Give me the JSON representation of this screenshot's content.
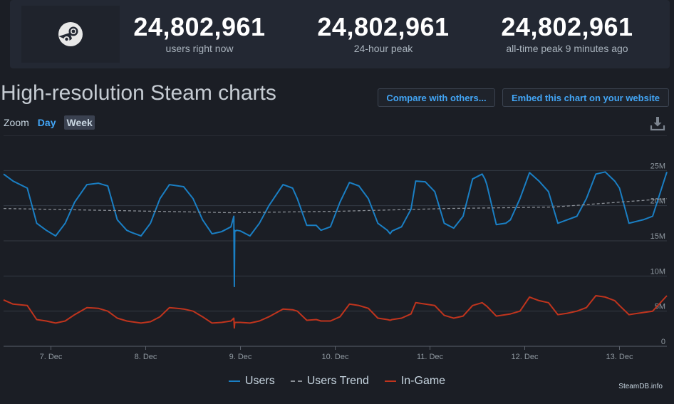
{
  "stats": [
    {
      "value": "24,802,961",
      "label": "users right now"
    },
    {
      "value": "24,802,961",
      "label": "24-hour peak"
    },
    {
      "value": "24,802,961",
      "label": "all-time peak 9 minutes ago"
    }
  ],
  "logo_icon": "steam-logo-icon",
  "title": "High-resolution Steam charts",
  "buttons": {
    "compare": "Compare with others...",
    "embed": "Embed this chart on your website"
  },
  "zoom": {
    "label": "Zoom",
    "day": "Day",
    "week": "Week"
  },
  "download_icon": "download-icon",
  "credit": "SteamDB.info",
  "colors": {
    "users": "#1a7fc4",
    "trend": "#8a8f96",
    "ingame": "#c0341d",
    "accent": "#42a5f5"
  },
  "chart_data": {
    "type": "line",
    "xlabel": "",
    "ylabel": "",
    "x_ticks": [
      "7. Dec",
      "8. Dec",
      "9. Dec",
      "10. Dec",
      "11. Dec",
      "12. Dec",
      "13. Dec"
    ],
    "y_ticks": [
      "0",
      "5M",
      "10M",
      "15M",
      "20M",
      "25M"
    ],
    "ylim": [
      0,
      30000000
    ],
    "legend_position": "bottom",
    "grid": true,
    "series": [
      {
        "name": "Users",
        "color": "#1a7fc4",
        "x": [
          6.5,
          6.6,
          6.75,
          6.85,
          6.95,
          7.05,
          7.15,
          7.25,
          7.38,
          7.5,
          7.55,
          7.6,
          7.7,
          7.8,
          7.85,
          7.95,
          8.05,
          8.15,
          8.25,
          8.4,
          8.5,
          8.6,
          8.7,
          8.8,
          8.9,
          8.93,
          8.935,
          8.94,
          8.945,
          8.95,
          8.96,
          9.0,
          9.1,
          9.2,
          9.3,
          9.45,
          9.55,
          9.6,
          9.7,
          9.8,
          9.85,
          9.95,
          10.05,
          10.15,
          10.25,
          10.35,
          10.45,
          10.55,
          10.58,
          10.6,
          10.7,
          10.8,
          10.85,
          10.95,
          11.05,
          11.15,
          11.25,
          11.35,
          11.45,
          11.55,
          11.58,
          11.6,
          11.7,
          11.8,
          11.85,
          11.95,
          12.05,
          12.15,
          12.25,
          12.35,
          12.45,
          12.55,
          12.65,
          12.75,
          12.85,
          12.95,
          13.0,
          13.1,
          13.25,
          13.35,
          13.5
        ],
        "y": [
          24500000,
          23500000,
          22500000,
          17500000,
          16500000,
          15700000,
          17500000,
          20500000,
          23000000,
          23200000,
          23000000,
          22800000,
          18000000,
          16500000,
          16200000,
          15700000,
          17500000,
          21000000,
          23000000,
          22700000,
          21000000,
          18000000,
          16000000,
          16300000,
          17000000,
          18500000,
          8500000,
          16500000,
          16400000,
          16400000,
          16500000,
          16400000,
          15700000,
          17500000,
          20000000,
          23000000,
          22500000,
          21000000,
          17200000,
          17200000,
          16500000,
          17000000,
          20500000,
          23300000,
          22800000,
          21000000,
          17500000,
          16500000,
          16000000,
          16400000,
          17000000,
          19500000,
          23500000,
          23400000,
          22000000,
          17500000,
          16800000,
          18500000,
          23800000,
          24500000,
          23800000,
          23000000,
          17300000,
          17500000,
          18000000,
          21000000,
          24700000,
          23500000,
          22000000,
          17500000,
          18000000,
          18500000,
          21000000,
          24500000,
          24800000,
          23500000,
          22500000,
          17500000,
          18000000,
          18500000,
          24800000
        ]
      },
      {
        "name": "Users Trend",
        "color": "#8a8f96",
        "x": [
          6.5,
          8.9,
          10.0,
          11.2,
          12.3,
          13.5
        ],
        "y": [
          19600000,
          19000000,
          19200000,
          19600000,
          19800000,
          21000000
        ]
      },
      {
        "name": "In-Game",
        "color": "#c0341d",
        "x": [
          6.5,
          6.6,
          6.75,
          6.85,
          6.95,
          7.05,
          7.15,
          7.25,
          7.38,
          7.5,
          7.55,
          7.6,
          7.7,
          7.8,
          7.85,
          7.95,
          8.05,
          8.15,
          8.25,
          8.4,
          8.5,
          8.6,
          8.7,
          8.8,
          8.9,
          8.93,
          8.935,
          8.94,
          8.95,
          9.0,
          9.1,
          9.2,
          9.3,
          9.45,
          9.55,
          9.6,
          9.7,
          9.8,
          9.85,
          9.95,
          10.05,
          10.15,
          10.25,
          10.35,
          10.45,
          10.55,
          10.58,
          10.6,
          10.7,
          10.8,
          10.85,
          10.95,
          11.05,
          11.15,
          11.25,
          11.35,
          11.45,
          11.55,
          11.58,
          11.6,
          11.7,
          11.8,
          11.85,
          11.95,
          12.05,
          12.15,
          12.25,
          12.35,
          12.45,
          12.55,
          12.65,
          12.75,
          12.85,
          12.95,
          13.0,
          13.1,
          13.25,
          13.35,
          13.5
        ],
        "y": [
          6600000,
          6000000,
          5800000,
          3800000,
          3600000,
          3300000,
          3600000,
          4500000,
          5500000,
          5400000,
          5200000,
          5000000,
          4000000,
          3600000,
          3500000,
          3300000,
          3500000,
          4200000,
          5500000,
          5300000,
          5000000,
          4200000,
          3300000,
          3400000,
          3600000,
          4000000,
          2600000,
          3400000,
          3400000,
          3400000,
          3300000,
          3600000,
          4200000,
          5300000,
          5200000,
          5000000,
          3700000,
          3800000,
          3600000,
          3600000,
          4200000,
          6000000,
          5800000,
          5400000,
          4000000,
          3800000,
          3700000,
          3800000,
          4000000,
          4600000,
          6200000,
          6000000,
          5800000,
          4400000,
          4000000,
          4300000,
          5800000,
          6200000,
          5900000,
          5700000,
          4300000,
          4500000,
          4600000,
          5000000,
          7000000,
          6500000,
          6200000,
          4500000,
          4700000,
          5000000,
          5500000,
          7200000,
          7000000,
          6500000,
          5800000,
          4500000,
          4800000,
          5000000,
          7200000
        ]
      }
    ],
    "x_domain": [
      6.5,
      13.5
    ]
  }
}
